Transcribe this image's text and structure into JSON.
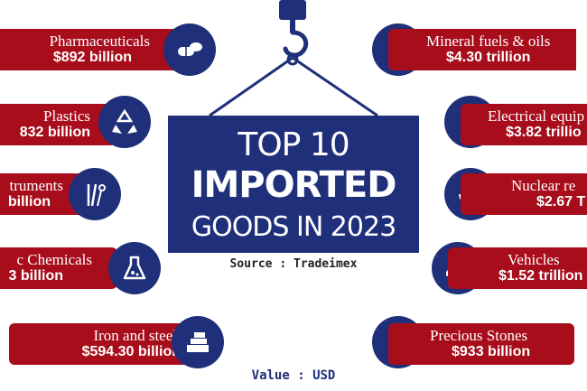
{
  "title": {
    "line1": "TOP 10",
    "line2": "IMPORTED",
    "line3": "GOODS IN 2023"
  },
  "source": "Source : Tradeimex",
  "unit": "Value : USD",
  "colors": {
    "pill": "#a80d1c",
    "navy": "#1f2f7a"
  },
  "items": [
    {
      "name": "Pharmaceuticals",
      "value": "$892 billion",
      "icon": "pills-icon"
    },
    {
      "name": "Plastics",
      "value": "832 billion",
      "icon": "recycle-icon"
    },
    {
      "name": "truments",
      "value": "billion",
      "icon": "surgical-instruments-icon"
    },
    {
      "name": "c Chemicals",
      "value": "3 billion",
      "icon": "flask-icon"
    },
    {
      "name": "Iron and steel",
      "value": "$594.30 billion",
      "icon": "steel-bars-icon"
    },
    {
      "name": "Mineral fuels & oils",
      "value": "$4.30 trillion",
      "icon": "oil-barrel-icon"
    },
    {
      "name": "Electrical equip",
      "value": "$3.82 trillio",
      "icon": "electrical-gear-icon"
    },
    {
      "name": "Nuclear re",
      "value": "$2.67 T",
      "icon": "radiation-icon"
    },
    {
      "name": "Vehicles",
      "value": "$1.52 trillion",
      "icon": "car-icon"
    },
    {
      "name": "Precious Stones",
      "value": "$933 billion",
      "icon": "gems-icon"
    }
  ]
}
